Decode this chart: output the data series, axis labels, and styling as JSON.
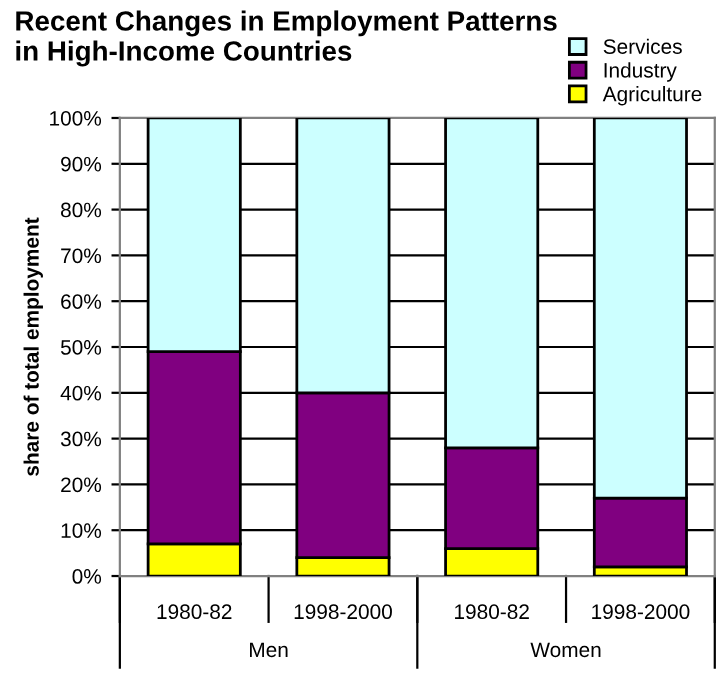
{
  "chart_data": {
    "type": "bar",
    "title": "Recent Changes in Employment Patterns\nin High-Income Countries",
    "ylabel": "share of total employment",
    "categories": [
      "1980-82",
      "1998-2000",
      "1980-82",
      "1998-2000"
    ],
    "annotations": [
      "Men",
      "Women"
    ],
    "stacked": true,
    "series": [
      {
        "name": "Agriculture",
        "color": "#ffff00",
        "values": [
          7,
          4,
          6,
          2
        ]
      },
      {
        "name": "Industry",
        "color": "#800080",
        "values": [
          42,
          36,
          22,
          15
        ]
      },
      {
        "name": "Services",
        "color": "#ccffff",
        "values": [
          51,
          60,
          72,
          83
        ]
      }
    ],
    "ylim": [
      0,
      100
    ],
    "yticks": [
      {
        "value": 0,
        "label": "0%"
      },
      {
        "value": 10,
        "label": "10%"
      },
      {
        "value": 20,
        "label": "20%"
      },
      {
        "value": 30,
        "label": "30%"
      },
      {
        "value": 40,
        "label": "40%"
      },
      {
        "value": 50,
        "label": "50%"
      },
      {
        "value": 60,
        "label": "60%"
      },
      {
        "value": 70,
        "label": "70%"
      },
      {
        "value": 80,
        "label": "80%"
      },
      {
        "value": 90,
        "label": "90%"
      },
      {
        "value": 100,
        "label": "100%"
      }
    ],
    "grid": "y",
    "legend": "top right"
  }
}
